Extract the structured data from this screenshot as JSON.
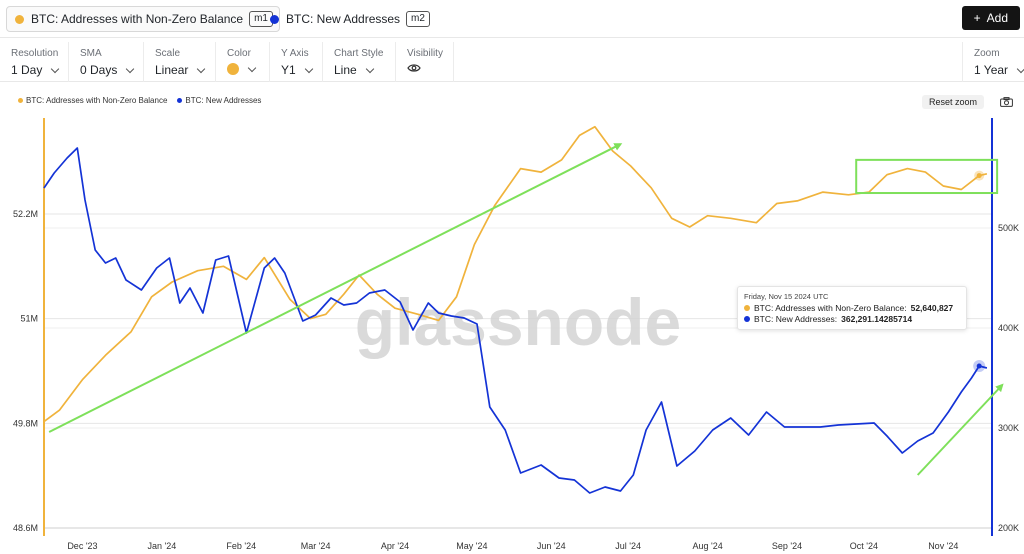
{
  "metrics": [
    {
      "label": "BTC: Addresses with Non-Zero Balance",
      "badge": "m1",
      "color": "#f0b33c"
    },
    {
      "label": "BTC: New Addresses",
      "badge": "m2",
      "color": "#1433d6"
    }
  ],
  "add_button": {
    "label": "Add",
    "icon": "plus-icon"
  },
  "toolbar": {
    "resolution": {
      "label": "Resolution",
      "value": "1 Day"
    },
    "sma": {
      "label": "SMA",
      "value": "0 Days"
    },
    "scale": {
      "label": "Scale",
      "value": "Linear"
    },
    "color": {
      "label": "Color",
      "value": "#f0b33c"
    },
    "y_axis": {
      "label": "Y Axis",
      "value": "Y1"
    },
    "chart_style": {
      "label": "Chart Style",
      "value": "Line"
    },
    "visibility": {
      "label": "Visibility",
      "icon": "eye-icon"
    },
    "zoom": {
      "label": "Zoom",
      "value": "1 Year"
    }
  },
  "reset_zoom": "Reset zoom",
  "watermark": "glassnode",
  "tooltip": {
    "date": "Friday, Nov 15 2024 UTC",
    "rows": [
      {
        "label": "BTC: Addresses with Non-Zero Balance:",
        "value": "52,640,827",
        "color": "#f0b33c"
      },
      {
        "label": "BTC: New Addresses:",
        "value": "362,291.14285714",
        "color": "#1433d6"
      }
    ]
  },
  "chart_data": {
    "type": "line",
    "x_ticks": [
      "Dec '23",
      "Jan '24",
      "Feb '24",
      "Mar '24",
      "Apr '24",
      "May '24",
      "Jun '24",
      "Jul '24",
      "Aug '24",
      "Sep '24",
      "Oct '24",
      "Nov '24"
    ],
    "y_left": {
      "ticks": [
        "52.2M",
        "51M",
        "49.8M",
        "48.6M"
      ],
      "tick_values": [
        52.2,
        51.0,
        49.8,
        48.6
      ],
      "range": [
        48.6,
        53.3
      ],
      "unit": "M"
    },
    "y_right": {
      "ticks": [
        "500K",
        "400K",
        "300K",
        "200K"
      ],
      "tick_values": [
        500,
        400,
        300,
        200
      ],
      "range": [
        200,
        610
      ],
      "unit": "K"
    },
    "x_range": [
      "2023-11-16",
      "2024-11-20"
    ],
    "series": [
      {
        "name": "BTC: Addresses with Non-Zero Balance",
        "axis": "left",
        "color": "#f0b33c",
        "x": [
          "2023-11-16",
          "2023-11-22",
          "2023-12-01",
          "2023-12-10",
          "2023-12-20",
          "2023-12-28",
          "2024-01-05",
          "2024-01-15",
          "2024-01-25",
          "2024-02-03",
          "2024-02-10",
          "2024-02-20",
          "2024-02-28",
          "2024-03-05",
          "2024-03-12",
          "2024-03-18",
          "2024-03-25",
          "2024-04-01",
          "2024-04-10",
          "2024-04-18",
          "2024-04-25",
          "2024-05-02",
          "2024-05-10",
          "2024-05-20",
          "2024-05-28",
          "2024-06-05",
          "2024-06-12",
          "2024-06-18",
          "2024-06-25",
          "2024-07-02",
          "2024-07-10",
          "2024-07-18",
          "2024-07-25",
          "2024-08-01",
          "2024-08-10",
          "2024-08-20",
          "2024-08-28",
          "2024-09-05",
          "2024-09-15",
          "2024-09-25",
          "2024-10-03",
          "2024-10-10",
          "2024-10-18",
          "2024-10-25",
          "2024-11-01",
          "2024-11-08",
          "2024-11-15",
          "2024-11-18"
        ],
        "y": [
          49.82,
          49.95,
          50.3,
          50.58,
          50.85,
          51.25,
          51.42,
          51.55,
          51.6,
          51.45,
          51.7,
          51.22,
          51.0,
          51.05,
          51.28,
          51.5,
          51.28,
          51.12,
          51.05,
          50.98,
          51.25,
          51.85,
          52.3,
          52.72,
          52.68,
          52.82,
          53.1,
          53.2,
          52.92,
          52.75,
          52.5,
          52.15,
          52.05,
          52.18,
          52.15,
          52.1,
          52.32,
          52.35,
          52.45,
          52.42,
          52.45,
          52.65,
          52.72,
          52.68,
          52.52,
          52.48,
          52.64,
          52.66
        ]
      },
      {
        "name": "BTC: New Addresses",
        "axis": "right",
        "color": "#1433d6",
        "x": [
          "2023-11-16",
          "2023-11-20",
          "2023-11-25",
          "2023-11-29",
          "2023-12-02",
          "2023-12-06",
          "2023-12-10",
          "2023-12-14",
          "2023-12-18",
          "2023-12-24",
          "2023-12-30",
          "2024-01-04",
          "2024-01-08",
          "2024-01-12",
          "2024-01-17",
          "2024-01-22",
          "2024-01-27",
          "2024-02-03",
          "2024-02-10",
          "2024-02-14",
          "2024-02-18",
          "2024-02-25",
          "2024-03-01",
          "2024-03-07",
          "2024-03-12",
          "2024-03-17",
          "2024-03-22",
          "2024-03-28",
          "2024-04-03",
          "2024-04-08",
          "2024-04-14",
          "2024-04-18",
          "2024-04-23",
          "2024-04-28",
          "2024-05-03",
          "2024-05-08",
          "2024-05-14",
          "2024-05-20",
          "2024-05-28",
          "2024-06-04",
          "2024-06-10",
          "2024-06-16",
          "2024-06-22",
          "2024-06-28",
          "2024-07-03",
          "2024-07-08",
          "2024-07-14",
          "2024-07-20",
          "2024-07-27",
          "2024-08-03",
          "2024-08-10",
          "2024-08-17",
          "2024-08-24",
          "2024-08-31",
          "2024-09-07",
          "2024-09-14",
          "2024-09-21",
          "2024-09-28",
          "2024-10-05",
          "2024-10-10",
          "2024-10-16",
          "2024-10-22",
          "2024-10-28",
          "2024-11-03",
          "2024-11-08",
          "2024-11-12",
          "2024-11-15",
          "2024-11-18"
        ],
        "y": [
          540,
          555,
          570,
          580,
          528,
          478,
          465,
          470,
          448,
          438,
          460,
          470,
          425,
          440,
          415,
          468,
          472,
          395,
          460,
          470,
          455,
          407,
          413,
          430,
          423,
          425,
          435,
          438,
          426,
          398,
          425,
          415,
          412,
          410,
          404,
          321,
          298,
          255,
          263,
          250,
          248,
          235,
          241,
          237,
          253,
          298,
          326,
          262,
          277,
          298,
          310,
          293,
          316,
          301,
          301,
          301,
          303,
          304,
          305,
          292,
          275,
          287,
          295,
          316,
          336,
          350,
          362,
          360
        ]
      }
    ],
    "annotations": [
      {
        "type": "arrow",
        "color": "#7ee05a"
      },
      {
        "type": "arrow",
        "color": "#7ee05a"
      },
      {
        "type": "box",
        "color": "#7ee05a"
      }
    ]
  }
}
